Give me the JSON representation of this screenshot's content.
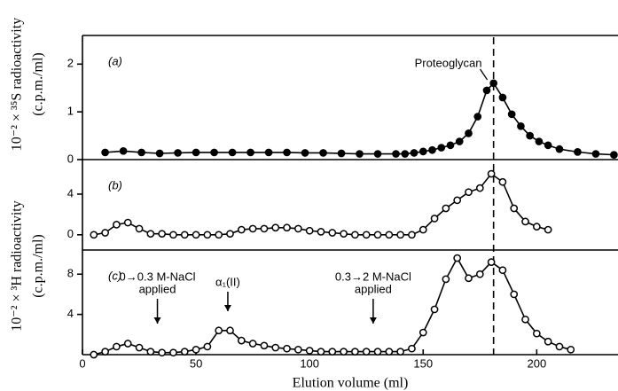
{
  "chart_data": [
    {
      "type": "line",
      "label": "(a)",
      "y_label": [
        "10⁻² × ³⁵S radioactivity",
        "(c.p.m./ml)"
      ],
      "xlim": [
        0,
        235
      ],
      "ylim": [
        0,
        2.6
      ],
      "yticks": [
        0,
        1,
        2
      ],
      "reference_x": 181,
      "annotations": [
        {
          "text": [
            "Proteoglycan"
          ],
          "x": 179
        }
      ],
      "series": [
        {
          "color": "#000000",
          "marker": "filled",
          "x": [
            10,
            18,
            26,
            34,
            42,
            50,
            58,
            66,
            74,
            82,
            90,
            98,
            106,
            114,
            122,
            130,
            138,
            142,
            146,
            150,
            154,
            158,
            162,
            166,
            170,
            174,
            178,
            181,
            185,
            189,
            193,
            197,
            201,
            205,
            210,
            218,
            226,
            234
          ],
          "values": [
            0.15,
            0.18,
            0.15,
            0.13,
            0.14,
            0.15,
            0.15,
            0.15,
            0.15,
            0.15,
            0.15,
            0.14,
            0.14,
            0.13,
            0.12,
            0.12,
            0.12,
            0.12,
            0.14,
            0.17,
            0.2,
            0.25,
            0.3,
            0.38,
            0.55,
            0.9,
            1.45,
            1.6,
            1.3,
            0.95,
            0.7,
            0.5,
            0.38,
            0.3,
            0.22,
            0.16,
            0.12,
            0.1
          ]
        }
      ]
    },
    {
      "type": "line",
      "label": "(b)",
      "xlim": [
        0,
        235
      ],
      "ylim": [
        -1.5,
        7.4
      ],
      "yticks": [
        0,
        4
      ],
      "series": [
        {
          "color": "#000000",
          "marker": "open",
          "x": [
            5,
            10,
            15,
            20,
            25,
            30,
            35,
            40,
            45,
            50,
            55,
            60,
            65,
            70,
            75,
            80,
            85,
            90,
            95,
            100,
            105,
            110,
            115,
            120,
            125,
            130,
            135,
            140,
            145,
            150,
            155,
            160,
            165,
            170,
            175,
            180,
            185,
            190,
            195,
            200,
            205
          ],
          "values": [
            0.0,
            0.2,
            1.0,
            1.2,
            0.6,
            0.1,
            0.1,
            0.0,
            0.0,
            0.0,
            0.0,
            0.0,
            0.1,
            0.5,
            0.6,
            0.6,
            0.7,
            0.7,
            0.6,
            0.4,
            0.3,
            0.2,
            0.1,
            0.0,
            0.0,
            0.0,
            0.0,
            0.0,
            0.0,
            0.5,
            1.6,
            2.6,
            3.4,
            4.2,
            4.6,
            6.0,
            5.2,
            2.6,
            1.3,
            0.8,
            0.5
          ]
        }
      ]
    },
    {
      "type": "line",
      "label": "(c)",
      "y_label": [
        "10⁻² × ³H radioactivity",
        "(c.p.m./ml)"
      ],
      "x_label": "Elution volume (ml)",
      "xlim": [
        0,
        235
      ],
      "ylim": [
        0,
        10.4
      ],
      "yticks": [
        4,
        8
      ],
      "xticks": [
        0,
        50,
        100,
        150,
        200
      ],
      "annotations": [
        {
          "text": [
            "0→0.3 M-NaCl",
            "applied"
          ],
          "x": 33
        },
        {
          "text": [
            "α₁(II)"
          ],
          "x": 64
        },
        {
          "text": [
            "0.3→2 M-NaCl",
            "applied"
          ],
          "x": 128
        }
      ],
      "series": [
        {
          "color": "#000000",
          "marker": "open",
          "x": [
            5,
            10,
            15,
            20,
            25,
            30,
            35,
            40,
            45,
            50,
            55,
            60,
            65,
            70,
            75,
            80,
            85,
            90,
            95,
            100,
            105,
            110,
            115,
            120,
            125,
            130,
            135,
            140,
            145,
            150,
            155,
            160,
            165,
            170,
            175,
            180,
            185,
            190,
            195,
            200,
            205,
            210,
            215
          ],
          "values": [
            0.0,
            0.3,
            0.8,
            1.1,
            0.7,
            0.3,
            0.2,
            0.2,
            0.3,
            0.5,
            0.8,
            2.4,
            2.4,
            1.4,
            1.1,
            0.9,
            0.7,
            0.6,
            0.5,
            0.4,
            0.3,
            0.3,
            0.3,
            0.3,
            0.3,
            0.3,
            0.3,
            0.3,
            0.6,
            2.2,
            4.5,
            7.5,
            9.6,
            7.6,
            8.0,
            9.2,
            8.4,
            6.0,
            3.5,
            2.1,
            1.3,
            0.8,
            0.5
          ]
        }
      ]
    }
  ]
}
